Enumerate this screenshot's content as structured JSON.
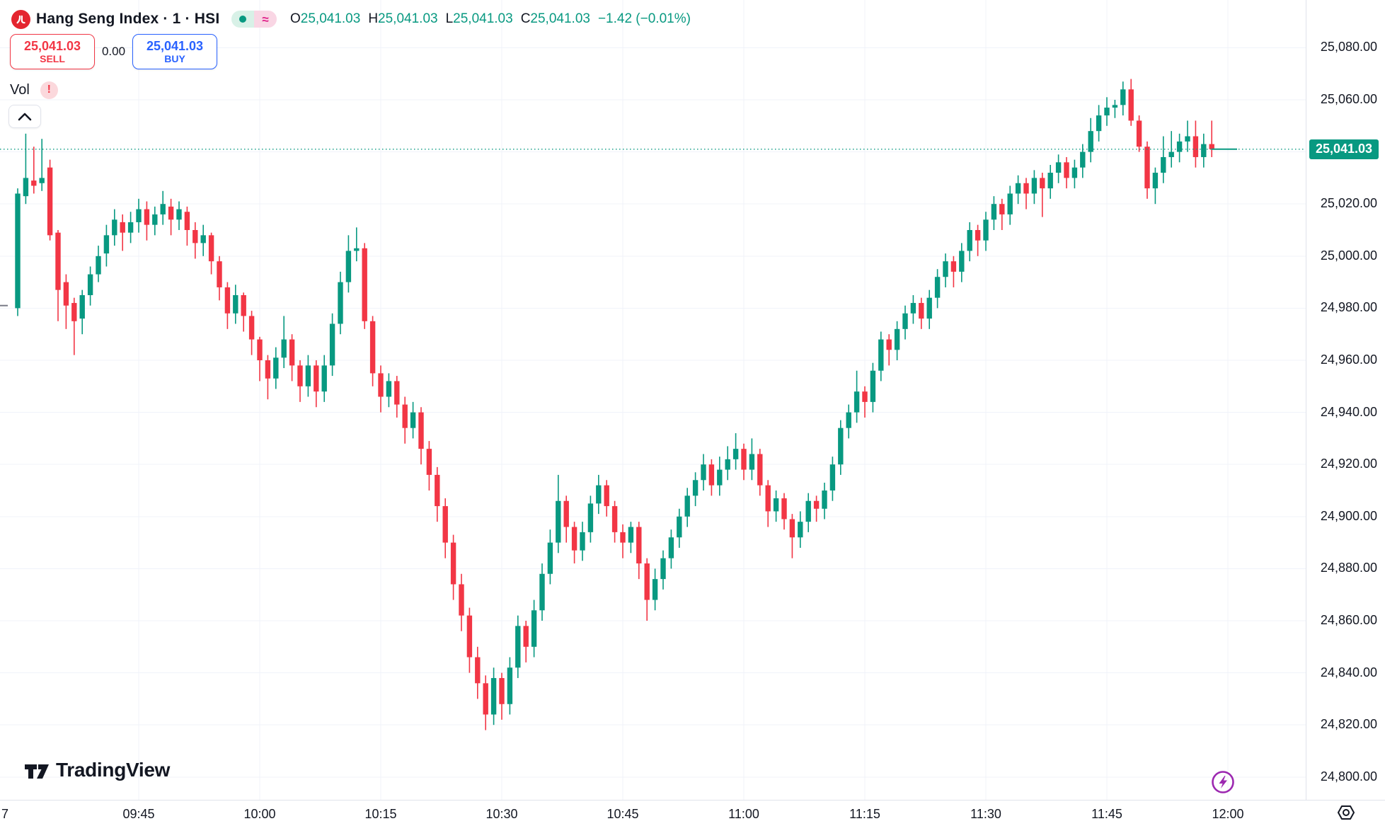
{
  "header": {
    "symbol_title": "Hang Seng Index · 1 · HSI",
    "logo": "hang-seng-logo",
    "pills": {
      "market_status_dot": "#089981",
      "approx_glyph": "≈"
    },
    "ohlc": {
      "o_label": "O",
      "o_value": "25,041.03",
      "h_label": "H",
      "h_value": "25,041.03",
      "l_label": "L",
      "l_value": "25,041.03",
      "c_label": "C",
      "c_value": "25,041.03",
      "change": "−1.42 (−0.01%)"
    }
  },
  "trade_panel": {
    "sell_price": "25,041.03",
    "sell_label": "SELL",
    "spread": "0.00",
    "buy_price": "25,041.03",
    "buy_label": "BUY"
  },
  "indicator": {
    "label": "Vol",
    "warning_glyph": "!"
  },
  "watermark": {
    "brand": "TradingView"
  },
  "price_axis": {
    "last_price_label": "25,041.03",
    "labels": [
      {
        "text": "25,080.00",
        "value": 25080
      },
      {
        "text": "25,060.00",
        "value": 25060
      },
      {
        "text": "25,020.00",
        "value": 25020
      },
      {
        "text": "25,000.00",
        "value": 25000
      },
      {
        "text": "24,980.00",
        "value": 24980
      },
      {
        "text": "24,960.00",
        "value": 24960
      },
      {
        "text": "24,940.00",
        "value": 24940
      },
      {
        "text": "24,920.00",
        "value": 24920
      },
      {
        "text": "24,900.00",
        "value": 24900
      },
      {
        "text": "24,880.00",
        "value": 24880
      },
      {
        "text": "24,860.00",
        "value": 24860
      },
      {
        "text": "24,840.00",
        "value": 24840
      },
      {
        "text": "24,820.00",
        "value": 24820
      },
      {
        "text": "24,800.00",
        "value": 24800
      }
    ]
  },
  "time_axis": {
    "labels": [
      {
        "text": "7",
        "minute": -1.5,
        "stub": true
      },
      {
        "text": "09:45",
        "minute": 15
      },
      {
        "text": "10:00",
        "minute": 30
      },
      {
        "text": "10:15",
        "minute": 45
      },
      {
        "text": "10:30",
        "minute": 60
      },
      {
        "text": "10:45",
        "minute": 75
      },
      {
        "text": "11:00",
        "minute": 90
      },
      {
        "text": "11:15",
        "minute": 105
      },
      {
        "text": "11:30",
        "minute": 120
      },
      {
        "text": "11:45",
        "minute": 135
      },
      {
        "text": "12:00",
        "minute": 150
      }
    ]
  },
  "chart_data": {
    "type": "candlestick",
    "title": "Hang Seng Index",
    "symbol": "HSI",
    "interval": "1 minute",
    "session_start": "09:30",
    "session_end": "12:00",
    "price_line_value": 25041.03,
    "prev_close_stub": 24981,
    "ylim": [
      24793,
      25099
    ],
    "y_gridline_step": 20,
    "y_gridlines": [
      25080,
      25060,
      25040,
      25020,
      25000,
      24980,
      24960,
      24940,
      24920,
      24900,
      24880,
      24860,
      24840,
      24820,
      24800
    ],
    "x_gridline_minutes": [
      15,
      30,
      45,
      60,
      75,
      90,
      105,
      120,
      135,
      150
    ],
    "colors": {
      "up": "#089981",
      "down": "#f23645",
      "grid": "#f0f3fa",
      "price_line": "#089981",
      "axis_text": "#131722"
    },
    "legend_position": "top-left",
    "grid": true,
    "candles_ohlc": [
      [
        24980,
        25026,
        24977,
        25024
      ],
      [
        25023,
        25047,
        25020,
        25030
      ],
      [
        25029,
        25042,
        25024,
        25027
      ],
      [
        25028,
        25045,
        25025,
        25030
      ],
      [
        25034,
        25037,
        25006,
        25008
      ],
      [
        25009,
        25010,
        24975,
        24987
      ],
      [
        24990,
        24993,
        24972,
        24981
      ],
      [
        24982,
        24984,
        24962,
        24975
      ],
      [
        24976,
        24987,
        24970,
        24985
      ],
      [
        24985,
        24996,
        24981,
        24993
      ],
      [
        24993,
        25004,
        24990,
        25000
      ],
      [
        25001,
        25012,
        24996,
        25008
      ],
      [
        25008,
        25018,
        25004,
        25014
      ],
      [
        25013,
        25016,
        25002,
        25009
      ],
      [
        25009,
        25017,
        25005,
        25013
      ],
      [
        25013,
        25022,
        25009,
        25018
      ],
      [
        25018,
        25021,
        25006,
        25012
      ],
      [
        25012,
        25019,
        25008,
        25016
      ],
      [
        25016,
        25025,
        25012,
        25020
      ],
      [
        25019,
        25022,
        25008,
        25014
      ],
      [
        25014,
        25021,
        25010,
        25018
      ],
      [
        25017,
        25019,
        25004,
        25010
      ],
      [
        25010,
        25013,
        24999,
        25005
      ],
      [
        25005,
        25012,
        25000,
        25008
      ],
      [
        25008,
        25009,
        24993,
        24998
      ],
      [
        24998,
        25000,
        24983,
        24988
      ],
      [
        24988,
        24990,
        24972,
        24978
      ],
      [
        24978,
        24989,
        24974,
        24985
      ],
      [
        24985,
        24986,
        24971,
        24977
      ],
      [
        24977,
        24979,
        24962,
        24968
      ],
      [
        24968,
        24969,
        24952,
        24960
      ],
      [
        24960,
        24962,
        24945,
        24953
      ],
      [
        24953,
        24965,
        24949,
        24961
      ],
      [
        24961,
        24977,
        24957,
        24968
      ],
      [
        24968,
        24970,
        24952,
        24958
      ],
      [
        24958,
        24960,
        24944,
        24950
      ],
      [
        24950,
        24962,
        24946,
        24958
      ],
      [
        24958,
        24960,
        24942,
        24948
      ],
      [
        24948,
        24962,
        24944,
        24958
      ],
      [
        24958,
        24978,
        24954,
        24974
      ],
      [
        24974,
        24994,
        24970,
        24990
      ],
      [
        24990,
        25008,
        24986,
        25002
      ],
      [
        25002,
        25011,
        24998,
        25003
      ],
      [
        25003,
        25005,
        24972,
        24975
      ],
      [
        24975,
        24977,
        24950,
        24955
      ],
      [
        24955,
        24958,
        24940,
        24946
      ],
      [
        24946,
        24955,
        24942,
        24952
      ],
      [
        24952,
        24954,
        24938,
        24943
      ],
      [
        24943,
        24946,
        24928,
        24934
      ],
      [
        24934,
        24944,
        24930,
        24940
      ],
      [
        24940,
        24942,
        24920,
        24926
      ],
      [
        24926,
        24929,
        24910,
        24916
      ],
      [
        24916,
        24919,
        24898,
        24904
      ],
      [
        24904,
        24907,
        24884,
        24890
      ],
      [
        24890,
        24893,
        24868,
        24874
      ],
      [
        24874,
        24878,
        24856,
        24862
      ],
      [
        24862,
        24865,
        24840,
        24846
      ],
      [
        24846,
        24850,
        24830,
        24836
      ],
      [
        24836,
        24839,
        24818,
        24824
      ],
      [
        24824,
        24842,
        24820,
        24838
      ],
      [
        24838,
        24840,
        24822,
        24828
      ],
      [
        24828,
        24846,
        24824,
        24842
      ],
      [
        24842,
        24862,
        24838,
        24858
      ],
      [
        24858,
        24860,
        24844,
        24850
      ],
      [
        24850,
        24868,
        24846,
        24864
      ],
      [
        24864,
        24882,
        24860,
        24878
      ],
      [
        24878,
        24895,
        24874,
        24890
      ],
      [
        24890,
        24916,
        24886,
        24906
      ],
      [
        24906,
        24908,
        24890,
        24896
      ],
      [
        24896,
        24898,
        24882,
        24887
      ],
      [
        24887,
        24898,
        24883,
        24894
      ],
      [
        24894,
        24908,
        24890,
        24905
      ],
      [
        24905,
        24916,
        24901,
        24912
      ],
      [
        24912,
        24914,
        24900,
        24904
      ],
      [
        24904,
        24906,
        24890,
        24894
      ],
      [
        24894,
        24897,
        24884,
        24890
      ],
      [
        24890,
        24898,
        24886,
        24896
      ],
      [
        24896,
        24898,
        24876,
        24882
      ],
      [
        24882,
        24884,
        24860,
        24868
      ],
      [
        24868,
        24880,
        24864,
        24876
      ],
      [
        24876,
        24887,
        24872,
        24884
      ],
      [
        24884,
        24895,
        24880,
        24892
      ],
      [
        24892,
        24903,
        24888,
        24900
      ],
      [
        24900,
        24911,
        24896,
        24908
      ],
      [
        24908,
        24917,
        24904,
        24914
      ],
      [
        24914,
        24924,
        24910,
        24920
      ],
      [
        24920,
        24922,
        24908,
        24912
      ],
      [
        24912,
        24923,
        24908,
        24918
      ],
      [
        24918,
        24927,
        24914,
        24922
      ],
      [
        24922,
        24932,
        24918,
        24926
      ],
      [
        24926,
        24928,
        24914,
        24918
      ],
      [
        24918,
        24930,
        24914,
        24924
      ],
      [
        24924,
        24926,
        24908,
        24912
      ],
      [
        24912,
        24914,
        24896,
        24902
      ],
      [
        24902,
        24910,
        24898,
        24907
      ],
      [
        24907,
        24909,
        24895,
        24899
      ],
      [
        24899,
        24901,
        24884,
        24892
      ],
      [
        24892,
        24902,
        24888,
        24898
      ],
      [
        24898,
        24909,
        24894,
        24906
      ],
      [
        24906,
        24908,
        24898,
        24903
      ],
      [
        24903,
        24913,
        24899,
        24910
      ],
      [
        24910,
        24923,
        24906,
        24920
      ],
      [
        24920,
        24937,
        24916,
        24934
      ],
      [
        24934,
        24943,
        24930,
        24940
      ],
      [
        24940,
        24956,
        24936,
        24948
      ],
      [
        24948,
        24950,
        24938,
        24944
      ],
      [
        24944,
        24959,
        24940,
        24956
      ],
      [
        24956,
        24971,
        24952,
        24968
      ],
      [
        24968,
        24970,
        24958,
        24964
      ],
      [
        24964,
        24975,
        24960,
        24972
      ],
      [
        24972,
        24981,
        24968,
        24978
      ],
      [
        24978,
        24985,
        24974,
        24982
      ],
      [
        24982,
        24984,
        24972,
        24976
      ],
      [
        24976,
        24987,
        24972,
        24984
      ],
      [
        24984,
        24995,
        24980,
        24992
      ],
      [
        24992,
        25001,
        24988,
        24998
      ],
      [
        24998,
        25000,
        24988,
        24994
      ],
      [
        24994,
        25005,
        24990,
        25002
      ],
      [
        25002,
        25013,
        24998,
        25010
      ],
      [
        25010,
        25012,
        25000,
        25006
      ],
      [
        25006,
        25017,
        25002,
        25014
      ],
      [
        25014,
        25023,
        25010,
        25020
      ],
      [
        25020,
        25022,
        25010,
        25016
      ],
      [
        25016,
        25027,
        25012,
        25024
      ],
      [
        25024,
        25031,
        25020,
        25028
      ],
      [
        25028,
        25030,
        25018,
        25024
      ],
      [
        25024,
        25033,
        25020,
        25030
      ],
      [
        25030,
        25032,
        25015,
        25026
      ],
      [
        25026,
        25035,
        25022,
        25032
      ],
      [
        25032,
        25039,
        25028,
        25036
      ],
      [
        25036,
        25038,
        25026,
        25030
      ],
      [
        25030,
        25037,
        25026,
        25034
      ],
      [
        25034,
        25043,
        25030,
        25040
      ],
      [
        25040,
        25053,
        25036,
        25048
      ],
      [
        25048,
        25058,
        25044,
        25054
      ],
      [
        25054,
        25061,
        25050,
        25057
      ],
      [
        25057,
        25060,
        25053,
        25058
      ],
      [
        25058,
        25067,
        25054,
        25064
      ],
      [
        25064,
        25068,
        25050,
        25052
      ],
      [
        25052,
        25054,
        25040,
        25042
      ],
      [
        25042,
        25044,
        25022,
        25026
      ],
      [
        25026,
        25034,
        25020,
        25032
      ],
      [
        25032,
        25046,
        25028,
        25038
      ],
      [
        25038,
        25048,
        25034,
        25040
      ],
      [
        25040,
        25047,
        25036,
        25044
      ],
      [
        25044,
        25052,
        25040,
        25046
      ],
      [
        25046,
        25052,
        25034,
        25038
      ],
      [
        25038,
        25047,
        25034,
        25043
      ],
      [
        25043,
        25052,
        25038,
        25041.03
      ]
    ]
  }
}
